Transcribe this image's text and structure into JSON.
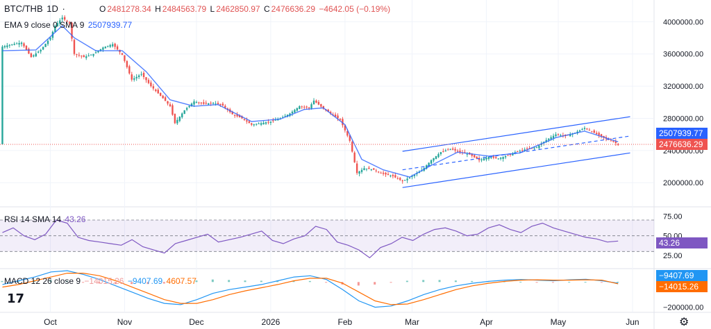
{
  "header": {
    "symbol": "BTC/THB",
    "interval": "1D",
    "dash": "·",
    "o_label": "O",
    "o": "2481278.34",
    "h_label": "H",
    "h": "2484563.79",
    "l_label": "L",
    "l": "2462850.97",
    "c_label": "C",
    "c": "2476636.29",
    "change": "−4642.05 (−0.19%)"
  },
  "ema": {
    "label": "EMA 9 close 0 SMA 9",
    "value": "2507939.77"
  },
  "rsi": {
    "label": "RSI 14 SMA 14",
    "value": "43.26"
  },
  "macd": {
    "label": "MACD 12 26 close 9",
    "v1": "−14015.26",
    "v2": "−9407.69",
    "v3": "4607.57"
  },
  "price_tags": {
    "ema": "2507939.77",
    "close": "2476636.29"
  },
  "rsi_tag": "43.26",
  "macd_tags": {
    "macd": "−9407.69",
    "signal": "−14015.26"
  },
  "colors": {
    "up": "#26a69a",
    "down": "#ef5350",
    "ema": "#2962ff",
    "rsi": "#7e57c2",
    "macd": "#2196f3",
    "signal": "#ff6d00",
    "channel": "#2962ff"
  },
  "logo_text": "17",
  "settings_icon": "gear-icon",
  "chart_data": {
    "type": "candlestick",
    "x_ticks": [
      "Oct",
      "Nov",
      "Dec",
      "2026",
      "Feb",
      "Mar",
      "Apr",
      "May",
      "Jun"
    ],
    "price_axis": {
      "ticks": [
        "4000000.00",
        "3600000.00",
        "3200000.00",
        "2800000.00",
        "2400000.00",
        "2000000.00"
      ],
      "range": [
        1700000,
        4270000
      ]
    },
    "rsi_axis": {
      "ticks": [
        "75.00",
        "50.00",
        "25.00"
      ],
      "band": [
        30,
        70
      ]
    },
    "macd_axis": {
      "ticks": [
        "0.00",
        "−200000.00"
      ]
    },
    "price_path": [
      [
        "2025-09-11",
        3690000
      ],
      [
        "2025-09-15",
        3720000
      ],
      [
        "2025-09-19",
        3740000
      ],
      [
        "2025-09-23",
        3560000
      ],
      [
        "2025-09-27",
        3650000
      ],
      [
        "2025-10-01",
        3800000
      ],
      [
        "2025-10-03",
        3950000
      ],
      [
        "2025-10-06",
        4050000
      ],
      [
        "2025-10-09",
        3980000
      ],
      [
        "2025-10-11",
        3600000
      ],
      [
        "2025-10-15",
        3560000
      ],
      [
        "2025-10-19",
        3600000
      ],
      [
        "2025-10-23",
        3680000
      ],
      [
        "2025-10-27",
        3720000
      ],
      [
        "2025-10-31",
        3590000
      ],
      [
        "2025-11-04",
        3280000
      ],
      [
        "2025-11-08",
        3350000
      ],
      [
        "2025-11-12",
        3200000
      ],
      [
        "2025-11-16",
        3080000
      ],
      [
        "2025-11-20",
        2950000
      ],
      [
        "2025-11-22",
        2740000
      ],
      [
        "2025-11-26",
        2900000
      ],
      [
        "2025-11-30",
        3010000
      ],
      [
        "2025-12-04",
        2980000
      ],
      [
        "2025-12-08",
        2990000
      ],
      [
        "2025-12-12",
        2960000
      ],
      [
        "2025-12-16",
        2850000
      ],
      [
        "2025-12-20",
        2800000
      ],
      [
        "2025-12-24",
        2720000
      ],
      [
        "2025-12-28",
        2740000
      ],
      [
        "2026-01-01",
        2760000
      ],
      [
        "2026-01-05",
        2800000
      ],
      [
        "2026-01-09",
        2860000
      ],
      [
        "2026-01-13",
        2950000
      ],
      [
        "2026-01-17",
        2930000
      ],
      [
        "2026-01-19",
        3020000
      ],
      [
        "2026-01-23",
        2920000
      ],
      [
        "2026-01-27",
        2840000
      ],
      [
        "2026-01-30",
        2780000
      ],
      [
        "2026-02-03",
        2520000
      ],
      [
        "2026-02-06",
        2120000
      ],
      [
        "2026-02-09",
        2180000
      ],
      [
        "2026-02-13",
        2160000
      ],
      [
        "2026-02-17",
        2110000
      ],
      [
        "2026-02-21",
        2080000
      ],
      [
        "2026-02-25",
        2020000
      ],
      [
        "2026-03-01",
        2080000
      ],
      [
        "2026-03-05",
        2150000
      ],
      [
        "2026-03-09",
        2280000
      ],
      [
        "2026-03-13",
        2380000
      ],
      [
        "2026-03-17",
        2420000
      ],
      [
        "2026-03-21",
        2380000
      ],
      [
        "2026-03-25",
        2350000
      ],
      [
        "2026-03-29",
        2280000
      ],
      [
        "2026-04-02",
        2320000
      ],
      [
        "2026-04-06",
        2300000
      ],
      [
        "2026-04-10",
        2340000
      ],
      [
        "2026-04-14",
        2390000
      ],
      [
        "2026-04-18",
        2420000
      ],
      [
        "2026-04-22",
        2440000
      ],
      [
        "2026-04-26",
        2530000
      ],
      [
        "2026-04-30",
        2600000
      ],
      [
        "2026-05-04",
        2580000
      ],
      [
        "2026-05-08",
        2620000
      ],
      [
        "2026-05-12",
        2680000
      ],
      [
        "2026-05-16",
        2620000
      ],
      [
        "2026-05-20",
        2560000
      ],
      [
        "2026-05-24",
        2510000
      ],
      [
        "2026-05-26",
        2476636
      ]
    ],
    "ema_path": [
      [
        "2025-09-11",
        3640000
      ],
      [
        "2025-09-25",
        3650000
      ],
      [
        "2025-10-06",
        3950000
      ],
      [
        "2025-10-11",
        3800000
      ],
      [
        "2025-10-20",
        3640000
      ],
      [
        "2025-10-31",
        3640000
      ],
      [
        "2025-11-10",
        3380000
      ],
      [
        "2025-11-20",
        3030000
      ],
      [
        "2025-11-30",
        2950000
      ],
      [
        "2025-12-10",
        2970000
      ],
      [
        "2025-12-24",
        2760000
      ],
      [
        "2026-01-05",
        2790000
      ],
      [
        "2026-01-15",
        2910000
      ],
      [
        "2026-01-23",
        2930000
      ],
      [
        "2026-02-01",
        2720000
      ],
      [
        "2026-02-08",
        2290000
      ],
      [
        "2026-02-17",
        2160000
      ],
      [
        "2026-02-28",
        2070000
      ],
      [
        "2026-03-10",
        2230000
      ],
      [
        "2026-03-20",
        2380000
      ],
      [
        "2026-04-02",
        2330000
      ],
      [
        "2026-04-15",
        2370000
      ],
      [
        "2026-04-30",
        2560000
      ],
      [
        "2026-05-12",
        2640000
      ],
      [
        "2026-05-26",
        2507940
      ]
    ],
    "channel_upper": [
      [
        "2026-02-25",
        2390000
      ],
      [
        "2026-05-31",
        2820000
      ]
    ],
    "channel_lower": [
      [
        "2026-02-25",
        1940000
      ],
      [
        "2026-05-31",
        2370000
      ]
    ],
    "channel_mid": [
      [
        "2026-02-25",
        2160000
      ],
      [
        "2026-05-31",
        2580000
      ]
    ],
    "rsi_values": [
      54,
      60,
      50,
      45,
      52,
      70,
      66,
      48,
      44,
      42,
      40,
      38,
      45,
      36,
      32,
      28,
      40,
      44,
      48,
      52,
      42,
      45,
      48,
      52,
      56,
      44,
      40,
      46,
      50,
      62,
      58,
      42,
      38,
      32,
      22,
      35,
      40,
      48,
      44,
      52,
      58,
      60,
      56,
      50,
      52,
      60,
      64,
      58,
      54,
      62,
      66,
      60,
      56,
      52,
      48,
      46,
      42,
      43.26
    ],
    "macd_values": [
      -20000,
      10000,
      40000,
      80000,
      90000,
      60000,
      20000,
      -30000,
      -80000,
      -130000,
      -170000,
      -180000,
      -140000,
      -90000,
      -60000,
      -40000,
      -20000,
      10000,
      40000,
      50000,
      20000,
      -60000,
      -150000,
      -200000,
      -190000,
      -150000,
      -100000,
      -60000,
      -30000,
      -10000,
      5000,
      15000,
      20000,
      15000,
      10000,
      18000,
      22000,
      10000,
      -9407.69
    ],
    "signal_values": [
      -40000,
      -20000,
      10000,
      40000,
      70000,
      70000,
      50000,
      10000,
      -40000,
      -90000,
      -140000,
      -170000,
      -170000,
      -140000,
      -100000,
      -70000,
      -45000,
      -20000,
      10000,
      30000,
      30000,
      -10000,
      -80000,
      -150000,
      -180000,
      -175000,
      -140000,
      -100000,
      -60000,
      -30000,
      -10000,
      5000,
      15000,
      18000,
      15000,
      15000,
      18000,
      15000,
      -14015.26
    ]
  }
}
